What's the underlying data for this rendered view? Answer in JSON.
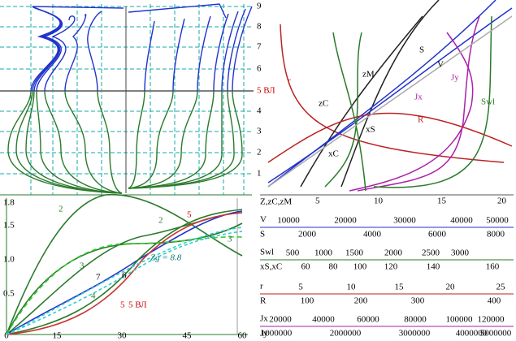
{
  "body_plan": {
    "waterline_labels": [
      "1",
      "2",
      "3",
      "4",
      "5 ВЛ",
      "6",
      "7",
      "8",
      "9"
    ]
  },
  "stability": {
    "y_ticks": [
      "0.5",
      "1.0",
      "1.5",
      "1.8"
    ],
    "x_ticks": [
      "0",
      "15",
      "30",
      "45",
      "60"
    ],
    "curve_labels": [
      "2",
      "2",
      "3",
      "3",
      "4",
      "5",
      "5",
      "6",
      "7"
    ],
    "zg_label": "Zg = 8.8",
    "waterline_label": "5 ВЛ"
  },
  "hydrostatics": {
    "curve_labels": [
      "r",
      "zM",
      "zC",
      "S",
      "V",
      "Jy",
      "Jx",
      "R",
      "Swl",
      "xS",
      "xC"
    ],
    "x_ticks": [
      "5",
      "10",
      "15",
      "20"
    ],
    "x_axis_label": "Z,zC,zM"
  },
  "scales": [
    {
      "top_label": "V",
      "top_ticks": [
        "10000",
        "20000",
        "30000",
        "40000",
        "50000"
      ],
      "bottom_label": "S",
      "bottom_ticks": [
        "2000",
        "4000",
        "6000",
        "8000"
      ]
    },
    {
      "top_label": "Swl",
      "top_ticks": [
        "500",
        "1000",
        "1500",
        "2000",
        "2500",
        "3000"
      ],
      "bottom_label": "xS,xC",
      "bottom_ticks": [
        "60",
        "80",
        "100",
        "120",
        "140",
        "160"
      ]
    },
    {
      "top_label": "r",
      "top_ticks": [
        "5",
        "10",
        "15",
        "20",
        "25"
      ],
      "bottom_label": "R",
      "bottom_ticks": [
        "100",
        "200",
        "300",
        "400"
      ]
    },
    {
      "top_label": "Jx",
      "top_ticks": [
        "20000",
        "40000",
        "60000",
        "80000",
        "100000",
        "120000"
      ],
      "bottom_label": "Jy",
      "bottom_ticks": [
        "1000000",
        "2000000",
        "3000000",
        "4000000",
        "5000000"
      ]
    }
  ]
}
